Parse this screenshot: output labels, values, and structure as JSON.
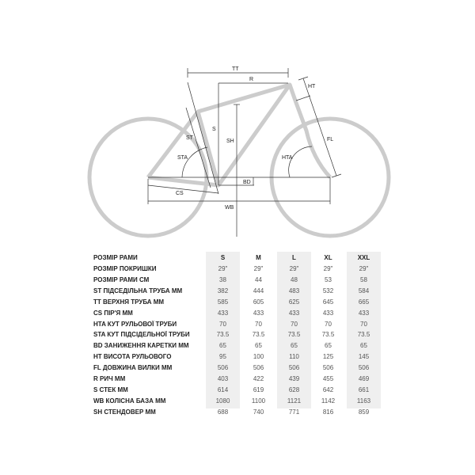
{
  "diagram": {
    "labels": {
      "tt": "TT",
      "r": "R",
      "ht": "HT",
      "s": "S",
      "sh": "SH",
      "st": "ST",
      "sta": "STA",
      "hta": "HTA",
      "fl": "FL",
      "bd": "BD",
      "cs": "CS",
      "wb": "WB"
    },
    "colors": {
      "frame": "#cccccc",
      "lines": "#333333",
      "shade": "#efefef"
    }
  },
  "table": {
    "header": {
      "label": "РОЗМІР РАМИ",
      "sizes": [
        "S",
        "M",
        "L",
        "XL",
        "XXL"
      ]
    },
    "rows": [
      {
        "label": "РОЗМІР ПОКРИШКИ",
        "values": [
          "29\"",
          "29\"",
          "29\"",
          "29\"",
          "29\""
        ]
      },
      {
        "label": "РОЗМІР РАМИ СМ",
        "values": [
          "38",
          "44",
          "48",
          "53",
          "58"
        ]
      },
      {
        "label": "ST ПІДСЕДІЛЬНА ТРУБА ММ",
        "values": [
          "382",
          "444",
          "483",
          "532",
          "584"
        ]
      },
      {
        "label": "TT ВЕРХНЯ ТРУБА ММ",
        "values": [
          "585",
          "605",
          "625",
          "645",
          "665"
        ]
      },
      {
        "label": "CS ПІР'Я ММ",
        "values": [
          "433",
          "433",
          "433",
          "433",
          "433"
        ]
      },
      {
        "label": "HTA КУТ РУЛЬОВОЇ ТРУБИ",
        "values": [
          "70",
          "70",
          "70",
          "70",
          "70"
        ]
      },
      {
        "label": "STA КУТ ПІДСІДЕЛЬНОЇ ТРУБИ",
        "values": [
          "73.5",
          "73.5",
          "73.5",
          "73.5",
          "73.5"
        ]
      },
      {
        "label": "BD ЗАНИЖЕННЯ КАРЕТКИ ММ",
        "values": [
          "65",
          "65",
          "65",
          "65",
          "65"
        ]
      },
      {
        "label": "HT ВИСОТА РУЛЬОВОГО",
        "values": [
          "95",
          "100",
          "110",
          "125",
          "145"
        ]
      },
      {
        "label": "FL ДОВЖИНА ВИЛКИ ММ",
        "values": [
          "506",
          "506",
          "506",
          "506",
          "506"
        ]
      },
      {
        "label": "R РИЧ ММ",
        "values": [
          "403",
          "422",
          "439",
          "455",
          "469"
        ]
      },
      {
        "label": "S СТЕК ММ",
        "values": [
          "614",
          "619",
          "628",
          "642",
          "661"
        ]
      },
      {
        "label": "WB КОЛІСНА БАЗА ММ",
        "values": [
          "1080",
          "1100",
          "1121",
          "1142",
          "1163"
        ]
      },
      {
        "label": "SH СТЕНДОВЕР ММ",
        "values": [
          "688",
          "740",
          "771",
          "816",
          "859"
        ]
      }
    ]
  }
}
